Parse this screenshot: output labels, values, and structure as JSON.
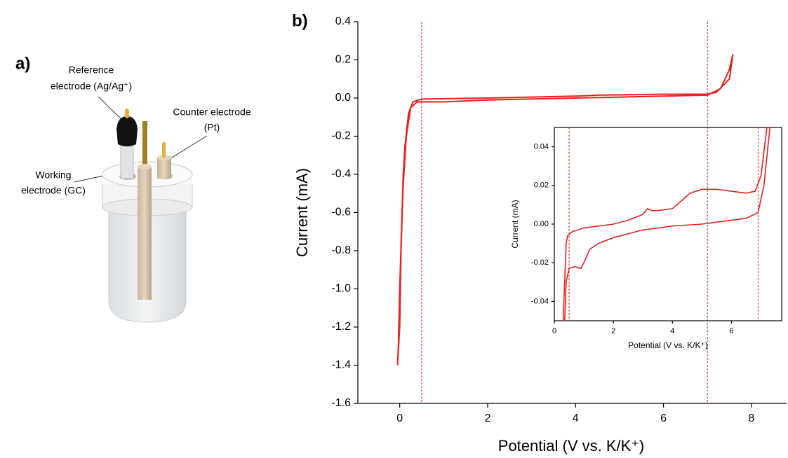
{
  "panel_a": {
    "label": "a)",
    "reference_line1": "Reference",
    "reference_line2": "electrode (Ag/Ag⁺)",
    "counter_line1": "Counter electrode",
    "counter_line2": "(Pt)",
    "working_line1": "Working",
    "working_line2": "electrode (GC)"
  },
  "chart_data": [
    {
      "type": "line",
      "panel_label": "b)",
      "xlabel": "Potential (V vs. K/K⁺)",
      "ylabel": "Current (mA)",
      "color": "#e8201e",
      "xlim": [
        -1,
        8.8
      ],
      "ylim": [
        -1.6,
        0.4
      ],
      "xticks": [
        0,
        2,
        4,
        6,
        8
      ],
      "yticks": [
        0.4,
        0.2,
        {
          "value": 0,
          "label": "0.0"
        },
        -0.2,
        -0.4,
        -0.6,
        -0.8,
        {
          "value": -1,
          "label": "-1.0"
        },
        -1.2,
        -1.4,
        -1.6
      ],
      "vlines": [
        0.5,
        7.0
      ],
      "box": false,
      "x": [
        -0.05,
        0,
        0.03,
        0.07,
        0.1,
        0.15,
        0.25,
        0.4,
        1,
        2,
        4,
        6,
        7,
        7.3,
        7.5,
        7.58,
        7.5,
        7.2,
        7,
        6,
        4.5,
        4,
        2,
        0.5,
        0.3,
        0.2,
        0.12,
        0.08,
        0.04,
        0,
        -0.03,
        -0.05
      ],
      "values": [
        -1.4,
        -1.2,
        -0.8,
        -0.5,
        -0.38,
        -0.2,
        -0.05,
        -0.02,
        -0.02,
        -0.01,
        0,
        0.01,
        0.015,
        0.05,
        0.15,
        0.23,
        0.1,
        0.03,
        0.02,
        0.02,
        0.015,
        0.01,
        0,
        -0.005,
        -0.02,
        -0.08,
        -0.25,
        -0.4,
        -0.7,
        -1.0,
        -1.3,
        -1.4
      ]
    },
    {
      "type": "line",
      "xlabel": "Potential (V vs. K/K⁺)",
      "ylabel": "Current (mA)",
      "color": "#e8201e",
      "xlim": [
        0,
        7.7
      ],
      "ylim": [
        -0.05,
        0.05
      ],
      "xticks": [
        0,
        2,
        4,
        6
      ],
      "yticks": [
        0.04,
        0.02,
        {
          "value": 0,
          "label": "0.00"
        },
        -0.02,
        -0.04
      ],
      "vlines": [
        0.5,
        6.9
      ],
      "box": true,
      "x": [
        0.3,
        0.35,
        0.4,
        0.45,
        0.6,
        1,
        2,
        2.5,
        3,
        3.15,
        3.3,
        3.5,
        4,
        4.3,
        4.6,
        5,
        5.5,
        6,
        6.5,
        6.8,
        7.0,
        7.2,
        7.3,
        7.1,
        6.9,
        6.5,
        5,
        4,
        3,
        2,
        1.5,
        1.2,
        1.0,
        0.9,
        0.7,
        0.5,
        0.4,
        0.35
      ],
      "values": [
        -0.05,
        -0.03,
        -0.01,
        -0.006,
        -0.004,
        -0.002,
        0,
        0.002,
        0.005,
        0.008,
        0.007,
        0.007,
        0.008,
        0.012,
        0.016,
        0.018,
        0.018,
        0.017,
        0.016,
        0.017,
        0.025,
        0.05,
        0.05,
        0.02,
        0.006,
        0.003,
        0,
        -0.001,
        -0.003,
        -0.007,
        -0.01,
        -0.013,
        -0.02,
        -0.023,
        -0.022,
        -0.023,
        -0.03,
        -0.05
      ]
    }
  ]
}
